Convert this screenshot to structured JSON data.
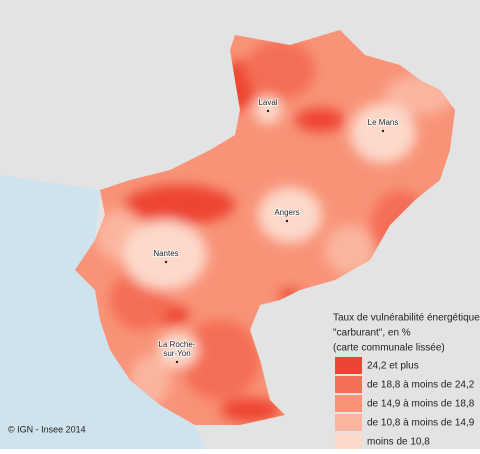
{
  "map": {
    "cities": [
      {
        "lines": [
          "Laval"
        ]
      },
      {
        "lines": [
          "Le Mans"
        ]
      },
      {
        "lines": [
          "Angers"
        ]
      },
      {
        "lines": [
          "Nantes"
        ]
      },
      {
        "lines": [
          "La Roche-",
          "sur-Yon"
        ]
      }
    ],
    "legend": {
      "title_lines": [
        "Taux de vulnérabilité énergétique",
        "\"carburant\", en %",
        " (carte communale lissée)"
      ],
      "items": [
        {
          "label": "24,2 et plus",
          "color": "#ee4433"
        },
        {
          "label": "de 18,8 à moins de 24,2",
          "color": "#f46e55"
        },
        {
          "label": "de 14,9 à moins de 18,8",
          "color": "#f89378"
        },
        {
          "label": "de 10,8 à moins de 14,9",
          "color": "#fbb59f"
        },
        {
          "label": "moins de 10,8",
          "color": "#fdd9cb"
        }
      ]
    },
    "credit": "© IGN - Insee 2014"
  }
}
